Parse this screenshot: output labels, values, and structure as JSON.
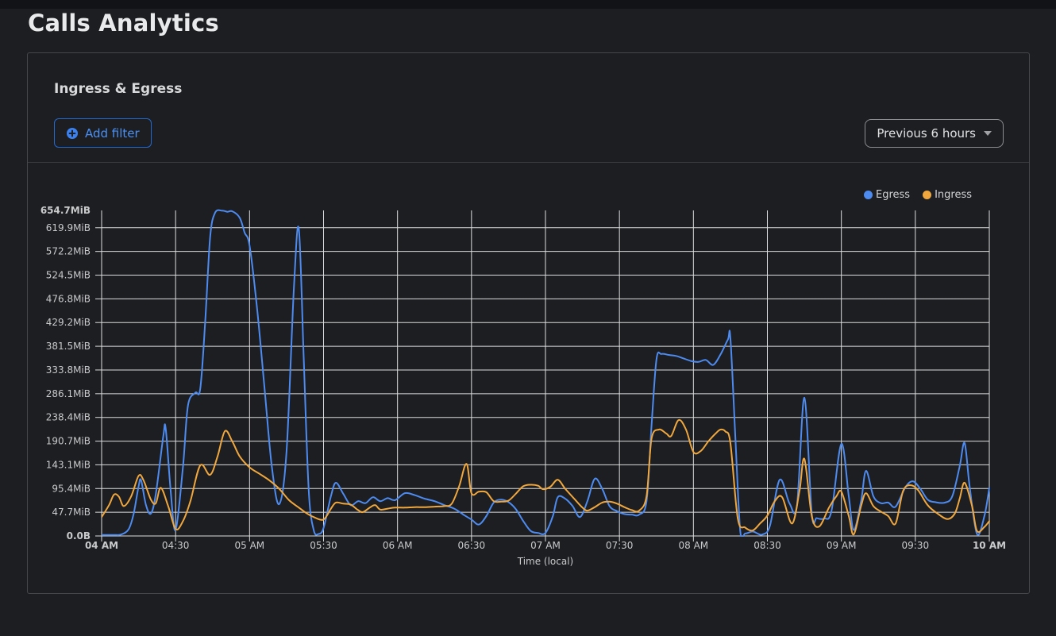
{
  "page": {
    "title": "Calls Analytics"
  },
  "panel": {
    "title": "Ingress & Egress",
    "add_filter_label": "Add filter",
    "time_range_label": "Previous 6 hours"
  },
  "colors": {
    "egress": "#4d8bf0",
    "ingress": "#f0a73e",
    "grid": "#dcddde",
    "accent_blue": "#3b82f0"
  },
  "chart_data": {
    "type": "line",
    "title": "Ingress & Egress",
    "xlabel": "Time (local)",
    "x_unit": "minutes after 04:00 local time",
    "x_range_minutes": [
      0,
      360
    ],
    "ylim_mib": [
      0,
      654.7
    ],
    "grid": true,
    "legend_position": "top-right",
    "y_ticks": [
      {
        "label": "0.0B",
        "mib": 0,
        "bold": true
      },
      {
        "label": "47.7MiB",
        "mib": 47.7
      },
      {
        "label": "95.4MiB",
        "mib": 95.4
      },
      {
        "label": "143.1MiB",
        "mib": 143.1
      },
      {
        "label": "190.7MiB",
        "mib": 190.7
      },
      {
        "label": "238.4MiB",
        "mib": 238.4
      },
      {
        "label": "286.1MiB",
        "mib": 286.1
      },
      {
        "label": "333.8MiB",
        "mib": 333.8
      },
      {
        "label": "381.5MiB",
        "mib": 381.5
      },
      {
        "label": "429.2MiB",
        "mib": 429.2
      },
      {
        "label": "476.8MiB",
        "mib": 476.8
      },
      {
        "label": "524.5MiB",
        "mib": 524.5
      },
      {
        "label": "572.2MiB",
        "mib": 572.2
      },
      {
        "label": "619.9MiB",
        "mib": 619.9
      },
      {
        "label": "654.7MiB",
        "mib": 654.7,
        "bold": true,
        "gridline": false
      }
    ],
    "x_ticks": [
      {
        "label": "04 AM",
        "min": 0,
        "bold": true
      },
      {
        "label": "04:30",
        "min": 30
      },
      {
        "label": "05 AM",
        "min": 60
      },
      {
        "label": "05:30",
        "min": 90
      },
      {
        "label": "06 AM",
        "min": 120
      },
      {
        "label": "06:30",
        "min": 150
      },
      {
        "label": "07 AM",
        "min": 180
      },
      {
        "label": "07:30",
        "min": 210
      },
      {
        "label": "08 AM",
        "min": 240
      },
      {
        "label": "08:30",
        "min": 270
      },
      {
        "label": "09 AM",
        "min": 300
      },
      {
        "label": "09:30",
        "min": 330
      },
      {
        "label": "10 AM",
        "min": 360,
        "bold": true
      }
    ],
    "series": [
      {
        "name": "Egress",
        "color": "#4d8bf0",
        "points": [
          [
            0,
            2
          ],
          [
            5,
            2
          ],
          [
            8,
            3
          ],
          [
            11,
            14
          ],
          [
            13,
            45
          ],
          [
            15,
            100
          ],
          [
            16,
            112
          ],
          [
            18,
            62
          ],
          [
            20,
            45
          ],
          [
            22,
            85
          ],
          [
            25,
            200
          ],
          [
            26,
            216
          ],
          [
            28,
            90
          ],
          [
            30,
            12
          ],
          [
            33,
            140
          ],
          [
            35,
            262
          ],
          [
            38,
            288
          ],
          [
            40,
            296
          ],
          [
            42,
            430
          ],
          [
            44,
            600
          ],
          [
            46,
            650
          ],
          [
            49,
            654
          ],
          [
            51,
            652
          ],
          [
            53,
            653
          ],
          [
            56,
            640
          ],
          [
            58,
            610
          ],
          [
            60,
            584
          ],
          [
            63,
            460
          ],
          [
            66,
            300
          ],
          [
            69,
            140
          ],
          [
            72,
            64
          ],
          [
            75,
            170
          ],
          [
            78,
            500
          ],
          [
            80,
            617
          ],
          [
            82,
            350
          ],
          [
            84,
            90
          ],
          [
            86,
            12
          ],
          [
            88,
            4
          ],
          [
            90,
            16
          ],
          [
            93,
            80
          ],
          [
            95,
            107
          ],
          [
            98,
            85
          ],
          [
            101,
            62
          ],
          [
            104,
            70
          ],
          [
            107,
            66
          ],
          [
            110,
            78
          ],
          [
            113,
            70
          ],
          [
            116,
            76
          ],
          [
            119,
            72
          ],
          [
            123,
            86
          ],
          [
            127,
            82
          ],
          [
            131,
            75
          ],
          [
            135,
            70
          ],
          [
            139,
            62
          ],
          [
            143,
            55
          ],
          [
            147,
            42
          ],
          [
            150,
            33
          ],
          [
            153,
            23
          ],
          [
            156,
            40
          ],
          [
            159,
            67
          ],
          [
            162,
            73
          ],
          [
            165,
            68
          ],
          [
            168,
            54
          ],
          [
            171,
            30
          ],
          [
            174,
            10
          ],
          [
            177,
            6
          ],
          [
            180,
            6
          ],
          [
            183,
            40
          ],
          [
            185,
            78
          ],
          [
            188,
            75
          ],
          [
            191,
            60
          ],
          [
            194,
            38
          ],
          [
            197,
            70
          ],
          [
            200,
            115
          ],
          [
            203,
            95
          ],
          [
            206,
            60
          ],
          [
            209,
            50
          ],
          [
            212,
            44
          ],
          [
            215,
            43
          ],
          [
            218,
            43
          ],
          [
            221,
            70
          ],
          [
            223,
            220
          ],
          [
            225,
            355
          ],
          [
            227,
            366
          ],
          [
            230,
            364
          ],
          [
            233,
            362
          ],
          [
            236,
            357
          ],
          [
            239,
            352
          ],
          [
            242,
            350
          ],
          [
            245,
            354
          ],
          [
            248,
            344
          ],
          [
            251,
            365
          ],
          [
            254,
            395
          ],
          [
            255,
            398
          ],
          [
            257,
            200
          ],
          [
            259,
            10
          ],
          [
            261,
            5
          ],
          [
            264,
            9
          ],
          [
            266,
            5
          ],
          [
            268,
            3
          ],
          [
            271,
            20
          ],
          [
            275,
            113
          ],
          [
            279,
            65
          ],
          [
            282,
            62
          ],
          [
            285,
            278
          ],
          [
            288,
            45
          ],
          [
            290,
            36
          ],
          [
            293,
            35
          ],
          [
            296,
            50
          ],
          [
            300,
            185
          ],
          [
            303,
            80
          ],
          [
            305,
            12
          ],
          [
            308,
            70
          ],
          [
            310,
            131
          ],
          [
            313,
            80
          ],
          [
            316,
            66
          ],
          [
            319,
            67
          ],
          [
            322,
            59
          ],
          [
            326,
            98
          ],
          [
            329,
            110
          ],
          [
            332,
            95
          ],
          [
            335,
            73
          ],
          [
            338,
            68
          ],
          [
            342,
            67
          ],
          [
            345,
            80
          ],
          [
            348,
            140
          ],
          [
            350,
            187
          ],
          [
            352,
            100
          ],
          [
            355,
            4
          ],
          [
            358,
            40
          ],
          [
            360,
            97
          ]
        ]
      },
      {
        "name": "Ingress",
        "color": "#f0a73e",
        "points": [
          [
            0,
            38
          ],
          [
            3,
            62
          ],
          [
            5,
            83
          ],
          [
            7,
            79
          ],
          [
            9,
            60
          ],
          [
            12,
            80
          ],
          [
            15,
            121
          ],
          [
            17,
            112
          ],
          [
            20,
            73
          ],
          [
            22,
            66
          ],
          [
            24,
            97
          ],
          [
            27,
            60
          ],
          [
            30,
            14
          ],
          [
            33,
            30
          ],
          [
            36,
            70
          ],
          [
            40,
            142
          ],
          [
            44,
            123
          ],
          [
            47,
            160
          ],
          [
            50,
            211
          ],
          [
            53,
            190
          ],
          [
            56,
            160
          ],
          [
            60,
            138
          ],
          [
            64,
            125
          ],
          [
            68,
            112
          ],
          [
            72,
            95
          ],
          [
            76,
            72
          ],
          [
            80,
            57
          ],
          [
            83,
            46
          ],
          [
            86,
            38
          ],
          [
            90,
            33
          ],
          [
            93,
            55
          ],
          [
            95,
            67
          ],
          [
            98,
            65
          ],
          [
            101,
            63
          ],
          [
            104,
            52
          ],
          [
            106,
            48
          ],
          [
            109,
            58
          ],
          [
            111,
            62
          ],
          [
            113,
            53
          ],
          [
            116,
            55
          ],
          [
            119,
            57
          ],
          [
            123,
            57
          ],
          [
            127,
            58
          ],
          [
            131,
            58
          ],
          [
            135,
            59
          ],
          [
            139,
            60
          ],
          [
            142,
            65
          ],
          [
            145,
            100
          ],
          [
            148,
            145
          ],
          [
            150,
            86
          ],
          [
            153,
            89
          ],
          [
            156,
            88
          ],
          [
            159,
            70
          ],
          [
            162,
            69
          ],
          [
            165,
            71
          ],
          [
            168,
            85
          ],
          [
            171,
            100
          ],
          [
            174,
            103
          ],
          [
            177,
            101
          ],
          [
            179,
            94
          ],
          [
            182,
            99
          ],
          [
            185,
            113
          ],
          [
            188,
            95
          ],
          [
            192,
            73
          ],
          [
            195,
            57
          ],
          [
            197,
            51
          ],
          [
            200,
            58
          ],
          [
            203,
            67
          ],
          [
            206,
            69
          ],
          [
            209,
            65
          ],
          [
            212,
            58
          ],
          [
            215,
            52
          ],
          [
            218,
            51
          ],
          [
            221,
            80
          ],
          [
            223,
            195
          ],
          [
            226,
            214
          ],
          [
            229,
            206
          ],
          [
            231,
            201
          ],
          [
            234,
            233
          ],
          [
            237,
            214
          ],
          [
            240,
            169
          ],
          [
            243,
            171
          ],
          [
            246,
            190
          ],
          [
            249,
            206
          ],
          [
            251,
            214
          ],
          [
            253,
            210
          ],
          [
            255,
            187
          ],
          [
            258,
            35
          ],
          [
            261,
            17
          ],
          [
            264,
            11
          ],
          [
            267,
            25
          ],
          [
            270,
            41
          ],
          [
            273,
            70
          ],
          [
            276,
            78
          ],
          [
            280,
            25
          ],
          [
            283,
            90
          ],
          [
            285,
            155
          ],
          [
            288,
            40
          ],
          [
            291,
            19
          ],
          [
            295,
            57
          ],
          [
            298,
            80
          ],
          [
            300,
            89
          ],
          [
            303,
            40
          ],
          [
            305,
            3
          ],
          [
            308,
            60
          ],
          [
            310,
            86
          ],
          [
            313,
            60
          ],
          [
            316,
            49
          ],
          [
            319,
            40
          ],
          [
            322,
            25
          ],
          [
            325,
            90
          ],
          [
            328,
            102
          ],
          [
            331,
            93
          ],
          [
            335,
            62
          ],
          [
            339,
            45
          ],
          [
            343,
            34
          ],
          [
            346,
            45
          ],
          [
            348,
            75
          ],
          [
            350,
            107
          ],
          [
            353,
            60
          ],
          [
            355,
            10
          ],
          [
            358,
            18
          ],
          [
            360,
            30
          ]
        ]
      }
    ]
  }
}
